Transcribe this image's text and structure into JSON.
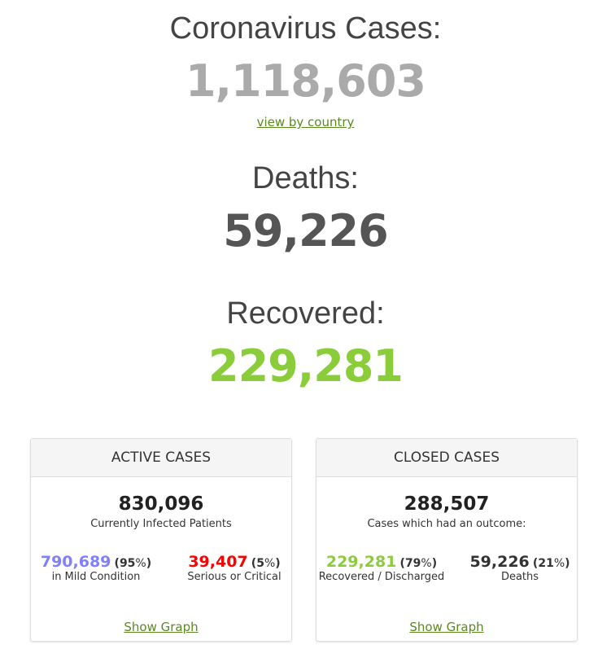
{
  "cases": {
    "label": "Coronavirus Cases:",
    "value": "1,118,603",
    "link": "view by country"
  },
  "deaths": {
    "label": "Deaths:",
    "value": "59,226"
  },
  "recovered": {
    "label": "Recovered:",
    "value": "229,281"
  },
  "active": {
    "title": "ACTIVE CASES",
    "total": "830,096",
    "subtitle": "Currently Infected Patients",
    "left": {
      "value": "790,689",
      "pct": "95",
      "label": "in Mild Condition",
      "color": "#8080ff"
    },
    "right": {
      "value": "39,407",
      "pct": "5",
      "label": "Serious or Critical",
      "color": "#ff0000"
    },
    "link": "Show Graph"
  },
  "closed": {
    "title": "CLOSED CASES",
    "total": "288,507",
    "subtitle": "Cases which had an outcome:",
    "left": {
      "value": "229,281",
      "pct": "79",
      "label": "Recovered / Discharged",
      "color": "#8acc3a"
    },
    "right": {
      "value": "59,226",
      "pct": "21",
      "label": "Deaths",
      "color": "#333333"
    },
    "link": "Show Graph"
  }
}
